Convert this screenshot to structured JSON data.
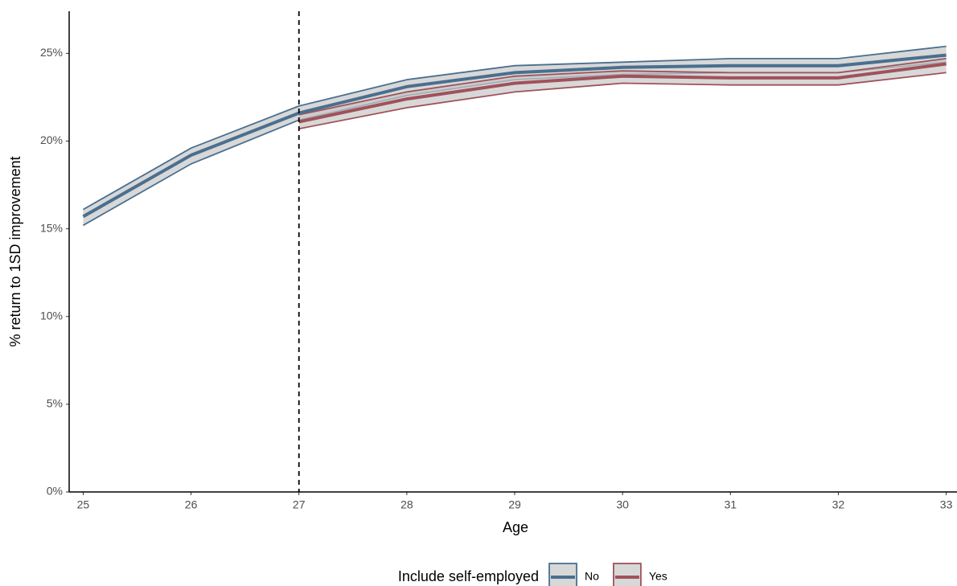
{
  "chart_data": {
    "type": "line",
    "x_label": "Age",
    "y_label": "% return to 1SD improvement",
    "x": [
      25,
      26,
      27,
      28,
      29,
      30,
      31,
      32,
      33
    ],
    "xlim": [
      24.87,
      33.1
    ],
    "xticks": [
      25,
      26,
      27,
      28,
      29,
      30,
      31,
      32,
      33
    ],
    "ylim": [
      0,
      27.4
    ],
    "yticks": [
      {
        "value": 0,
        "label": "0%"
      },
      {
        "value": 5,
        "label": "5%"
      },
      {
        "value": 10,
        "label": "10%"
      },
      {
        "value": 15,
        "label": "15%"
      },
      {
        "value": 20,
        "label": "20%"
      },
      {
        "value": 25,
        "label": "25%"
      }
    ],
    "vline": 27,
    "band_fill": "#c8c8c8",
    "legend_title": "Include self-employed",
    "legend_position": "bottom",
    "series": [
      {
        "name": "No",
        "color": "#4a6f8f",
        "values": [
          15.7,
          19.2,
          21.6,
          23.1,
          23.9,
          24.2,
          24.3,
          24.3,
          24.9
        ],
        "lower": [
          15.2,
          18.7,
          21.2,
          22.6,
          23.5,
          23.8,
          23.9,
          23.9,
          24.5
        ],
        "upper": [
          16.1,
          19.6,
          22.0,
          23.5,
          24.3,
          24.5,
          24.7,
          24.7,
          25.4
        ]
      },
      {
        "name": "Yes",
        "color": "#a0525a",
        "values": [
          null,
          null,
          21.1,
          22.4,
          23.3,
          23.7,
          23.6,
          23.6,
          24.4
        ],
        "lower": [
          null,
          null,
          20.7,
          21.9,
          22.8,
          23.3,
          23.2,
          23.2,
          23.9
        ],
        "upper": [
          null,
          null,
          21.5,
          22.8,
          23.7,
          24.0,
          23.9,
          23.9,
          24.7
        ]
      }
    ]
  }
}
